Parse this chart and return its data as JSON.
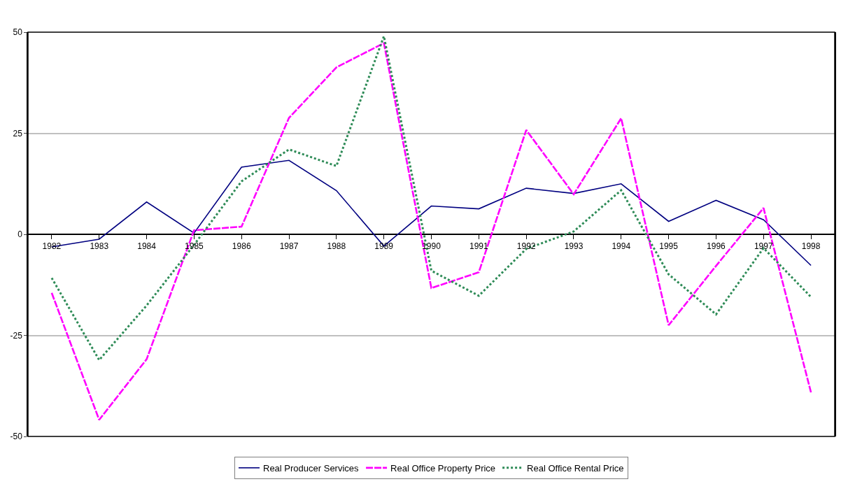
{
  "chart_data": {
    "type": "line",
    "categories": [
      "1982",
      "1983",
      "1984",
      "1985",
      "1986",
      "1987",
      "1988",
      "1989",
      "1990",
      "1991",
      "1992",
      "1993",
      "1994",
      "1995",
      "1996",
      "1997",
      "1998"
    ],
    "series": [
      {
        "name": "Real Producer Services",
        "color": "#000080",
        "line_style": "solid",
        "values": [
          -3.1,
          -1.2,
          8.0,
          0.3,
          16.6,
          18.3,
          10.8,
          -2.9,
          7.0,
          6.3,
          11.4,
          10.1,
          12.5,
          3.2,
          8.4,
          3.6,
          -7.7
        ]
      },
      {
        "name": "Real Office Property Price",
        "color": "#ff00ff",
        "line_style": "dashed",
        "values": [
          -14.5,
          -45.9,
          -30.9,
          1.0,
          1.9,
          28.8,
          41.3,
          47.3,
          -13.3,
          -9.4,
          25.8,
          9.9,
          28.7,
          -22.5,
          -7.8,
          6.5,
          -39.1
        ]
      },
      {
        "name": "Real Office Rental Price",
        "color": "#2e8b57",
        "line_style": "dotted",
        "values": [
          -10.8,
          -31.1,
          -17.6,
          -2.6,
          13.1,
          21.0,
          16.9,
          49.0,
          -9.0,
          -15.2,
          -3.6,
          0.7,
          10.9,
          -9.9,
          -19.8,
          -3.4,
          -15.5
        ]
      }
    ],
    "ylim": [
      -50,
      50
    ],
    "yticks": [
      -50,
      -25,
      0,
      25,
      50
    ],
    "grid": "y",
    "legend": "bottom",
    "marker": "none"
  }
}
